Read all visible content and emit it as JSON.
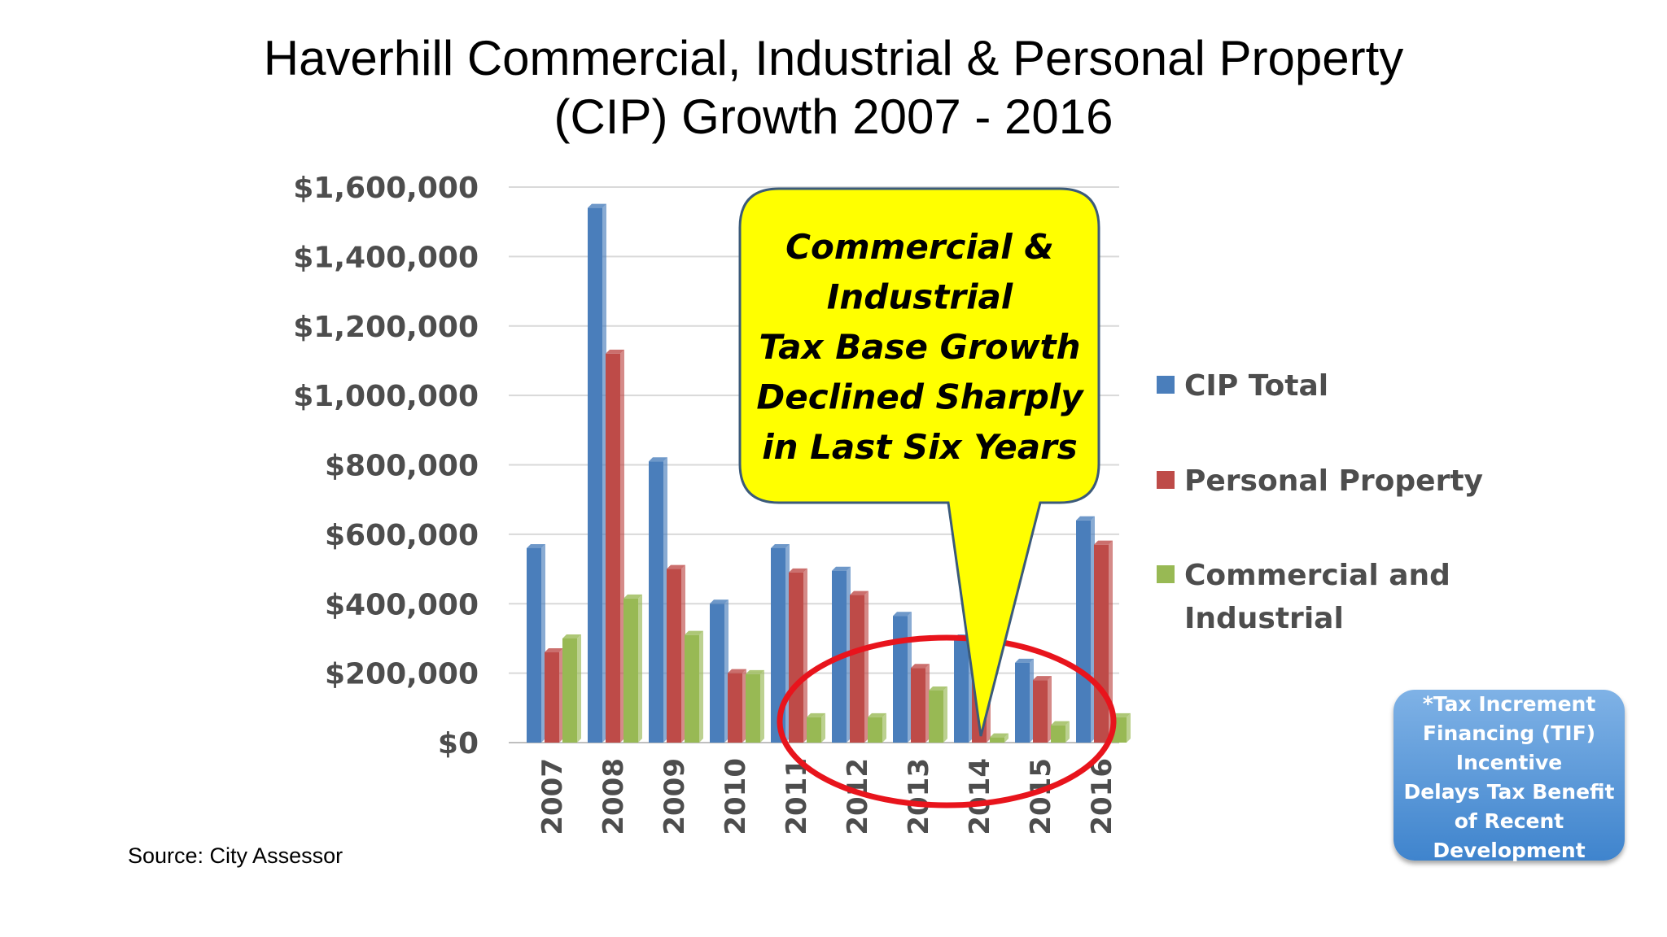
{
  "title": {
    "line1": "Haverhill Commercial, Industrial & Personal Property",
    "line2": "(CIP) Growth 2007 - 2016"
  },
  "source": "Source: City Assessor",
  "callout": {
    "lines": [
      "Commercial &",
      "Industrial",
      "Tax Base Growth",
      "Declined Sharply",
      "in Last Six Years"
    ],
    "fill": "#ffff00",
    "stroke": "#3b5a7a"
  },
  "tif_note": {
    "lines": [
      "*Tax Increment",
      "Financing (TIF)",
      "Incentive",
      "Delays Tax Benefit",
      "of Recent",
      "Development"
    ]
  },
  "chart_data": {
    "type": "bar",
    "categories": [
      "2007",
      "2008",
      "2009",
      "2010",
      "2011",
      "2012",
      "2013",
      "2014",
      "2015",
      "2016"
    ],
    "series": [
      {
        "name": "CIP Total",
        "color": "#4a7ebb",
        "values": [
          560000,
          1540000,
          810000,
          400000,
          560000,
          495000,
          365000,
          300000,
          230000,
          640000
        ]
      },
      {
        "name": "Personal Property",
        "color": "#be4b48",
        "values": [
          260000,
          1120000,
          500000,
          200000,
          490000,
          425000,
          215000,
          285000,
          180000,
          570000
        ]
      },
      {
        "name": "Commercial and Industrial",
        "color": "#98b954",
        "values": [
          300000,
          415000,
          310000,
          197000,
          73000,
          73000,
          150000,
          15000,
          50000,
          73000
        ]
      }
    ],
    "y_ticks": [
      "$0",
      "$200,000",
      "$400,000",
      "$600,000",
      "$800,000",
      "$1,000,000",
      "$1,200,000",
      "$1,400,000",
      "$1,600,000"
    ],
    "ylim": [
      0,
      1600000
    ],
    "grid": true,
    "legend_position": "right",
    "annotation": {
      "type": "ellipse",
      "color": "#e8141c",
      "covers": [
        "2011",
        "2012",
        "2013",
        "2014",
        "2015",
        "2016"
      ]
    }
  }
}
